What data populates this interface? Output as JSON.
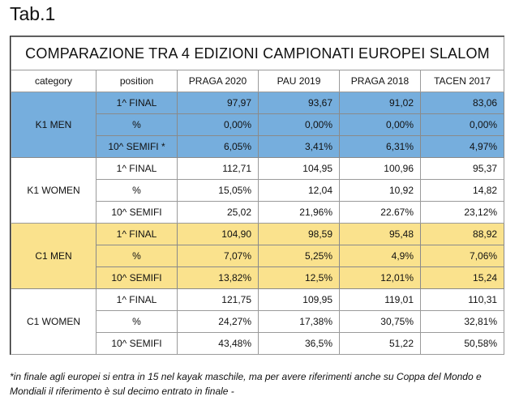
{
  "tab_label": "Tab.1",
  "table": {
    "title": "COMPARAZIONE TRA 4 EDIZIONI CAMPIONATI EUROPEI SLALOM",
    "headers": [
      "category",
      "position",
      "PRAGA 2020",
      "PAU 2019",
      "PRAGA 2018",
      "TACEN 2017"
    ],
    "groups": [
      {
        "category": "K1 MEN",
        "color": "#76aedd",
        "rows": [
          {
            "position": "1^ FINAL",
            "values": [
              "97,97",
              "93,67",
              "91,02",
              "83,06"
            ]
          },
          {
            "position": "%",
            "values": [
              "0,00%",
              "0,00%",
              "0,00%",
              "0,00%"
            ]
          },
          {
            "position": "10^ SEMIFI *",
            "values": [
              "6,05%",
              "3,41%",
              "6,31%",
              "4,97%"
            ]
          }
        ]
      },
      {
        "category": "K1 WOMEN",
        "color": "#ffffff",
        "rows": [
          {
            "position": "1^ FINAL",
            "values": [
              "112,71",
              "104,95",
              "100,96",
              "95,37"
            ]
          },
          {
            "position": "%",
            "values": [
              "15,05%",
              "12,04",
              "10,92",
              "14,82"
            ]
          },
          {
            "position": "10^ SEMIFI",
            "values": [
              "25,02",
              "21,96%",
              "22.67%",
              "23,12%"
            ]
          }
        ]
      },
      {
        "category": "C1 MEN",
        "color": "#fae28d",
        "rows": [
          {
            "position": "1^ FINAL",
            "values": [
              "104,90",
              "98,59",
              "95,48",
              "88,92"
            ]
          },
          {
            "position": "%",
            "values": [
              "7,07%",
              "5,25%",
              "4,9%",
              "7,06%"
            ]
          },
          {
            "position": "10^ SEMIFI",
            "values": [
              "13,82%",
              "12,5%",
              "12,01%",
              "15,24"
            ]
          }
        ]
      },
      {
        "category": "C1 WOMEN",
        "color": "#ffffff",
        "rows": [
          {
            "position": "1^ FINAL",
            "values": [
              "121,75",
              "109,95",
              "119,01",
              "110,31"
            ]
          },
          {
            "position": "%",
            "values": [
              "24,27%",
              "17,38%",
              "30,75%",
              "32,81%"
            ]
          },
          {
            "position": "10^ SEMIFI",
            "values": [
              "43,48%",
              "36,5%",
              "51,22",
              "50,58%"
            ]
          }
        ]
      }
    ]
  },
  "footnote": "*in finale agli europei si entra in 15 nel kayak maschile, ma per avere riferimenti anche su Coppa del Mondo e Mondiali il riferimento è sul decimo entrato in finale -"
}
